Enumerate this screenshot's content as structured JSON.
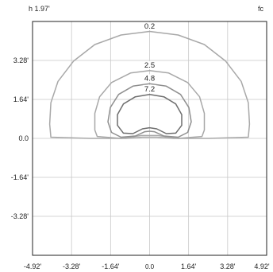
{
  "chart_data": {
    "type": "line",
    "corner_left": "h 1.97'",
    "corner_right": "fc",
    "x_ticks": [
      {
        "value": -4.92,
        "label": "-4.92'"
      },
      {
        "value": -3.28,
        "label": "-3.28'"
      },
      {
        "value": -1.64,
        "label": "-1.64'"
      },
      {
        "value": 0.0,
        "label": "0.0"
      },
      {
        "value": 1.64,
        "label": "1.64'"
      },
      {
        "value": 3.28,
        "label": "3.28'"
      },
      {
        "value": 4.92,
        "label": "4.92'"
      }
    ],
    "y_ticks": [
      {
        "value": 3.28,
        "label": "3.28'"
      },
      {
        "value": 1.64,
        "label": "1.64'"
      },
      {
        "value": 0.0,
        "label": "0.0"
      },
      {
        "value": -1.64,
        "label": "-1.64'"
      },
      {
        "value": -3.28,
        "label": "-3.28'"
      }
    ],
    "xlim": [
      -4.92,
      4.92
    ],
    "ylim": [
      -4.92,
      4.92
    ],
    "grid": true,
    "series": [
      {
        "name": "0.2",
        "color": "#a8a8a8",
        "points": [
          [
            0,
            4.5
          ],
          [
            1.2,
            4.35
          ],
          [
            2.3,
            3.95
          ],
          [
            3.2,
            3.25
          ],
          [
            3.85,
            2.4
          ],
          [
            4.15,
            1.5
          ],
          [
            4.2,
            0.6
          ],
          [
            4.15,
            0.05
          ],
          [
            2.5,
            0
          ],
          [
            1.0,
            0
          ],
          [
            0.3,
            0.05
          ],
          [
            -0.3,
            0.05
          ],
          [
            -1.0,
            0
          ],
          [
            -2.5,
            0
          ],
          [
            -4.15,
            0.05
          ],
          [
            -4.2,
            0.6
          ],
          [
            -4.15,
            1.5
          ],
          [
            -3.85,
            2.4
          ],
          [
            -3.2,
            3.25
          ],
          [
            -2.3,
            3.95
          ],
          [
            -1.2,
            4.35
          ],
          [
            0,
            4.5
          ]
        ]
      },
      {
        "name": "2.5",
        "color": "#a8a8a8",
        "points": [
          [
            0,
            2.85
          ],
          [
            0.8,
            2.75
          ],
          [
            1.6,
            2.35
          ],
          [
            2.1,
            1.75
          ],
          [
            2.3,
            1.05
          ],
          [
            2.3,
            0.35
          ],
          [
            2.2,
            0.08
          ],
          [
            1.2,
            0
          ],
          [
            0.35,
            0.12
          ],
          [
            -0.35,
            0.12
          ],
          [
            -1.2,
            0
          ],
          [
            -2.2,
            0.08
          ],
          [
            -2.3,
            0.35
          ],
          [
            -2.3,
            1.05
          ],
          [
            -2.1,
            1.75
          ],
          [
            -1.6,
            2.35
          ],
          [
            -0.8,
            2.75
          ],
          [
            0,
            2.85
          ]
        ]
      },
      {
        "name": "4.8",
        "color": "#8f8f8f",
        "points": [
          [
            0,
            2.3
          ],
          [
            0.7,
            2.2
          ],
          [
            1.3,
            1.85
          ],
          [
            1.65,
            1.3
          ],
          [
            1.75,
            0.7
          ],
          [
            1.6,
            0.25
          ],
          [
            1.2,
            0.05
          ],
          [
            0.6,
            0.1
          ],
          [
            0.2,
            0.28
          ],
          [
            0,
            0.3
          ],
          [
            -0.2,
            0.28
          ],
          [
            -0.6,
            0.1
          ],
          [
            -1.2,
            0.05
          ],
          [
            -1.6,
            0.25
          ],
          [
            -1.75,
            0.7
          ],
          [
            -1.65,
            1.3
          ],
          [
            -1.3,
            1.85
          ],
          [
            -0.7,
            2.2
          ],
          [
            0,
            2.3
          ]
        ]
      },
      {
        "name": "7.2",
        "color": "#6e6e6e",
        "points": [
          [
            0,
            1.85
          ],
          [
            0.6,
            1.75
          ],
          [
            1.1,
            1.45
          ],
          [
            1.35,
            1.0
          ],
          [
            1.35,
            0.55
          ],
          [
            1.1,
            0.22
          ],
          [
            0.7,
            0.2
          ],
          [
            0.3,
            0.4
          ],
          [
            0,
            0.45
          ],
          [
            -0.3,
            0.4
          ],
          [
            -0.7,
            0.2
          ],
          [
            -1.1,
            0.22
          ],
          [
            -1.35,
            0.55
          ],
          [
            -1.35,
            1.0
          ],
          [
            -1.1,
            1.45
          ],
          [
            -0.6,
            1.75
          ],
          [
            0,
            1.85
          ]
        ]
      }
    ],
    "annotations": [
      {
        "text": "0.2",
        "x": 0.0,
        "y": 4.62
      },
      {
        "text": "2.5",
        "x": 0.0,
        "y": 2.98
      },
      {
        "text": "4.8",
        "x": 0.0,
        "y": 2.43
      },
      {
        "text": "7.2",
        "x": 0.0,
        "y": 1.98
      }
    ]
  }
}
